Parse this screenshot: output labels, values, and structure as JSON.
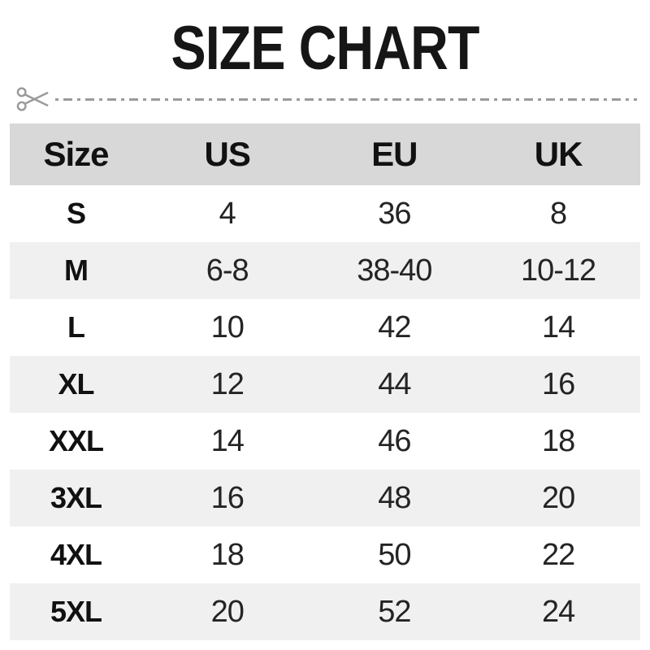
{
  "title": "SIZE CHART",
  "icons": {
    "scissors": "scissors-icon (✂ cut-here marker on dash-dot line)"
  },
  "colors": {
    "header_band": "#d8d8d8",
    "stripe_band": "#f0f0f0",
    "text": "#161616",
    "cutline_gray": "#9a9a9a",
    "background": "#ffffff"
  },
  "chart_data": {
    "type": "table",
    "title": "SIZE CHART",
    "columns": [
      "Size",
      "US",
      "EU",
      "UK"
    ],
    "rows": [
      [
        "S",
        "4",
        "36",
        "8"
      ],
      [
        "M",
        "6-8",
        "38-40",
        "10-12"
      ],
      [
        "L",
        "10",
        "42",
        "14"
      ],
      [
        "XL",
        "12",
        "44",
        "16"
      ],
      [
        "XXL",
        "14",
        "46",
        "18"
      ],
      [
        "3XL",
        "16",
        "48",
        "20"
      ],
      [
        "4XL",
        "18",
        "50",
        "22"
      ],
      [
        "5XL",
        "20",
        "52",
        "24"
      ]
    ],
    "layout_hints": {
      "header_background": "#d8d8d8",
      "zebra_striping": "white / #f0f0f0 alternating, first data row white",
      "all_cells_centered": true
    }
  }
}
